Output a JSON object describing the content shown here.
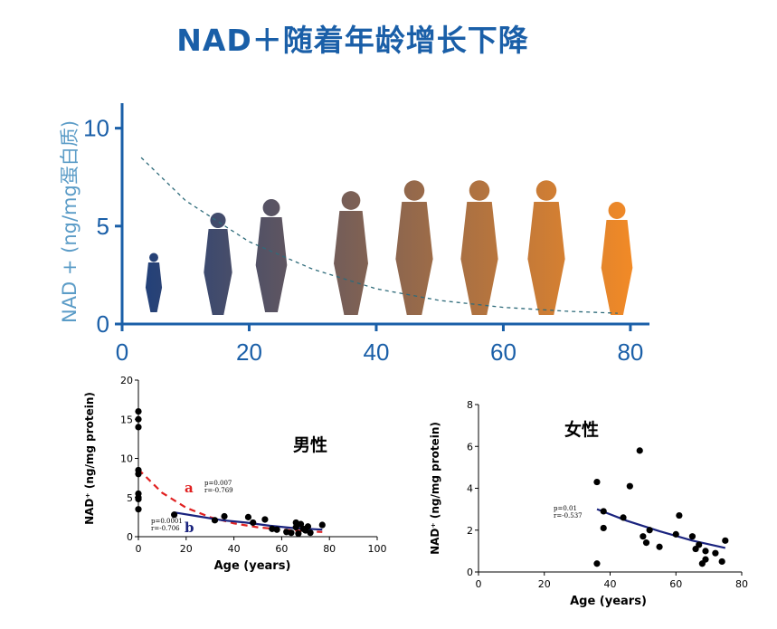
{
  "page_title": "NAD＋随着年龄增长下降",
  "chart_data": [
    {
      "type": "line",
      "ylabel": "NAD + (ng/mg蛋白质)",
      "xlim": [
        0,
        83
      ],
      "ylim": [
        0,
        11
      ],
      "x_ticks": [
        0,
        20,
        40,
        60,
        80
      ],
      "y_ticks": [
        0,
        5,
        10
      ],
      "series": [
        {
          "style": "dashed",
          "color": "#2e6b7a",
          "x": [
            3,
            10,
            20,
            30,
            40,
            50,
            60,
            70,
            78
          ],
          "y": [
            8.5,
            6.3,
            4.2,
            2.8,
            1.8,
            1.2,
            0.85,
            0.65,
            0.55
          ]
        }
      ],
      "silhouettes": 8,
      "colors": {
        "axis": "#1a5fa8",
        "gradient_start": "#1f3f7a",
        "gradient_end": "#f28a26"
      }
    },
    {
      "type": "scatter",
      "title": "男性",
      "xlabel": "Age (years)",
      "ylabel": "NAD⁺ (ng/mg protein)",
      "xlim": [
        0,
        100
      ],
      "ylim": [
        0,
        20
      ],
      "x_ticks": [
        0,
        20,
        40,
        60,
        80,
        100
      ],
      "y_ticks": [
        0,
        5,
        10,
        15,
        20
      ],
      "points": [
        [
          0,
          16
        ],
        [
          0,
          15
        ],
        [
          0,
          14
        ],
        [
          0,
          8.5
        ],
        [
          0,
          8
        ],
        [
          0,
          5.5
        ],
        [
          0,
          5
        ],
        [
          0,
          4.8
        ],
        [
          0,
          3.5
        ],
        [
          15,
          2.8
        ],
        [
          32,
          2.1
        ],
        [
          36,
          2.6
        ],
        [
          46,
          2.5
        ],
        [
          48,
          1.8
        ],
        [
          53,
          2.2
        ],
        [
          56,
          1.0
        ],
        [
          58,
          0.9
        ],
        [
          62,
          0.6
        ],
        [
          64,
          0.5
        ],
        [
          66,
          1.8
        ],
        [
          66,
          1.2
        ],
        [
          67,
          0.4
        ],
        [
          68,
          1.6
        ],
        [
          69,
          1.0
        ],
        [
          70,
          0.8
        ],
        [
          71,
          1.3
        ],
        [
          72,
          0.5
        ],
        [
          77,
          1.5
        ]
      ],
      "fits": [
        {
          "label": "a",
          "color": "#e02020",
          "style": "dashed",
          "x": [
            0,
            10,
            20,
            30,
            40,
            50,
            60,
            70,
            77
          ],
          "y": [
            8.6,
            5.6,
            3.7,
            2.5,
            1.7,
            1.2,
            0.9,
            0.7,
            0.6
          ]
        },
        {
          "label": "b",
          "color": "#1a237e",
          "style": "solid",
          "x": [
            15,
            25,
            35,
            45,
            55,
            65,
            77
          ],
          "y": [
            3.1,
            2.6,
            2.1,
            1.8,
            1.4,
            1.1,
            0.9
          ]
        }
      ],
      "stats_a": [
        "p=0.007",
        "r=-0.769"
      ],
      "stats_b": [
        "p=0.0001",
        "r=-0.706"
      ]
    },
    {
      "type": "scatter",
      "title": "女性",
      "xlabel": "Age (years)",
      "ylabel": "NAD⁺ (ng/mg protein)",
      "xlim": [
        0,
        80
      ],
      "ylim": [
        0,
        8
      ],
      "x_ticks": [
        0,
        20,
        40,
        60,
        80
      ],
      "y_ticks": [
        0,
        2,
        4,
        6,
        8
      ],
      "points": [
        [
          36,
          4.3
        ],
        [
          36,
          0.4
        ],
        [
          38,
          2.9
        ],
        [
          38,
          2.1
        ],
        [
          44,
          2.6
        ],
        [
          46,
          4.1
        ],
        [
          49,
          5.8
        ],
        [
          50,
          1.7
        ],
        [
          51,
          1.4
        ],
        [
          52,
          2.0
        ],
        [
          55,
          1.2
        ],
        [
          60,
          1.8
        ],
        [
          61,
          2.7
        ],
        [
          65,
          1.7
        ],
        [
          66,
          1.1
        ],
        [
          67,
          1.3
        ],
        [
          68,
          0.4
        ],
        [
          69,
          1.0
        ],
        [
          69,
          0.6
        ],
        [
          72,
          0.9
        ],
        [
          74,
          0.5
        ],
        [
          75,
          1.5
        ]
      ],
      "fits": [
        {
          "color": "#1a237e",
          "style": "solid",
          "x": [
            36,
            45,
            55,
            65,
            75
          ],
          "y": [
            3.0,
            2.45,
            1.95,
            1.5,
            1.15
          ]
        }
      ],
      "stats": [
        "p=0.01",
        "r=-0.537"
      ]
    }
  ]
}
